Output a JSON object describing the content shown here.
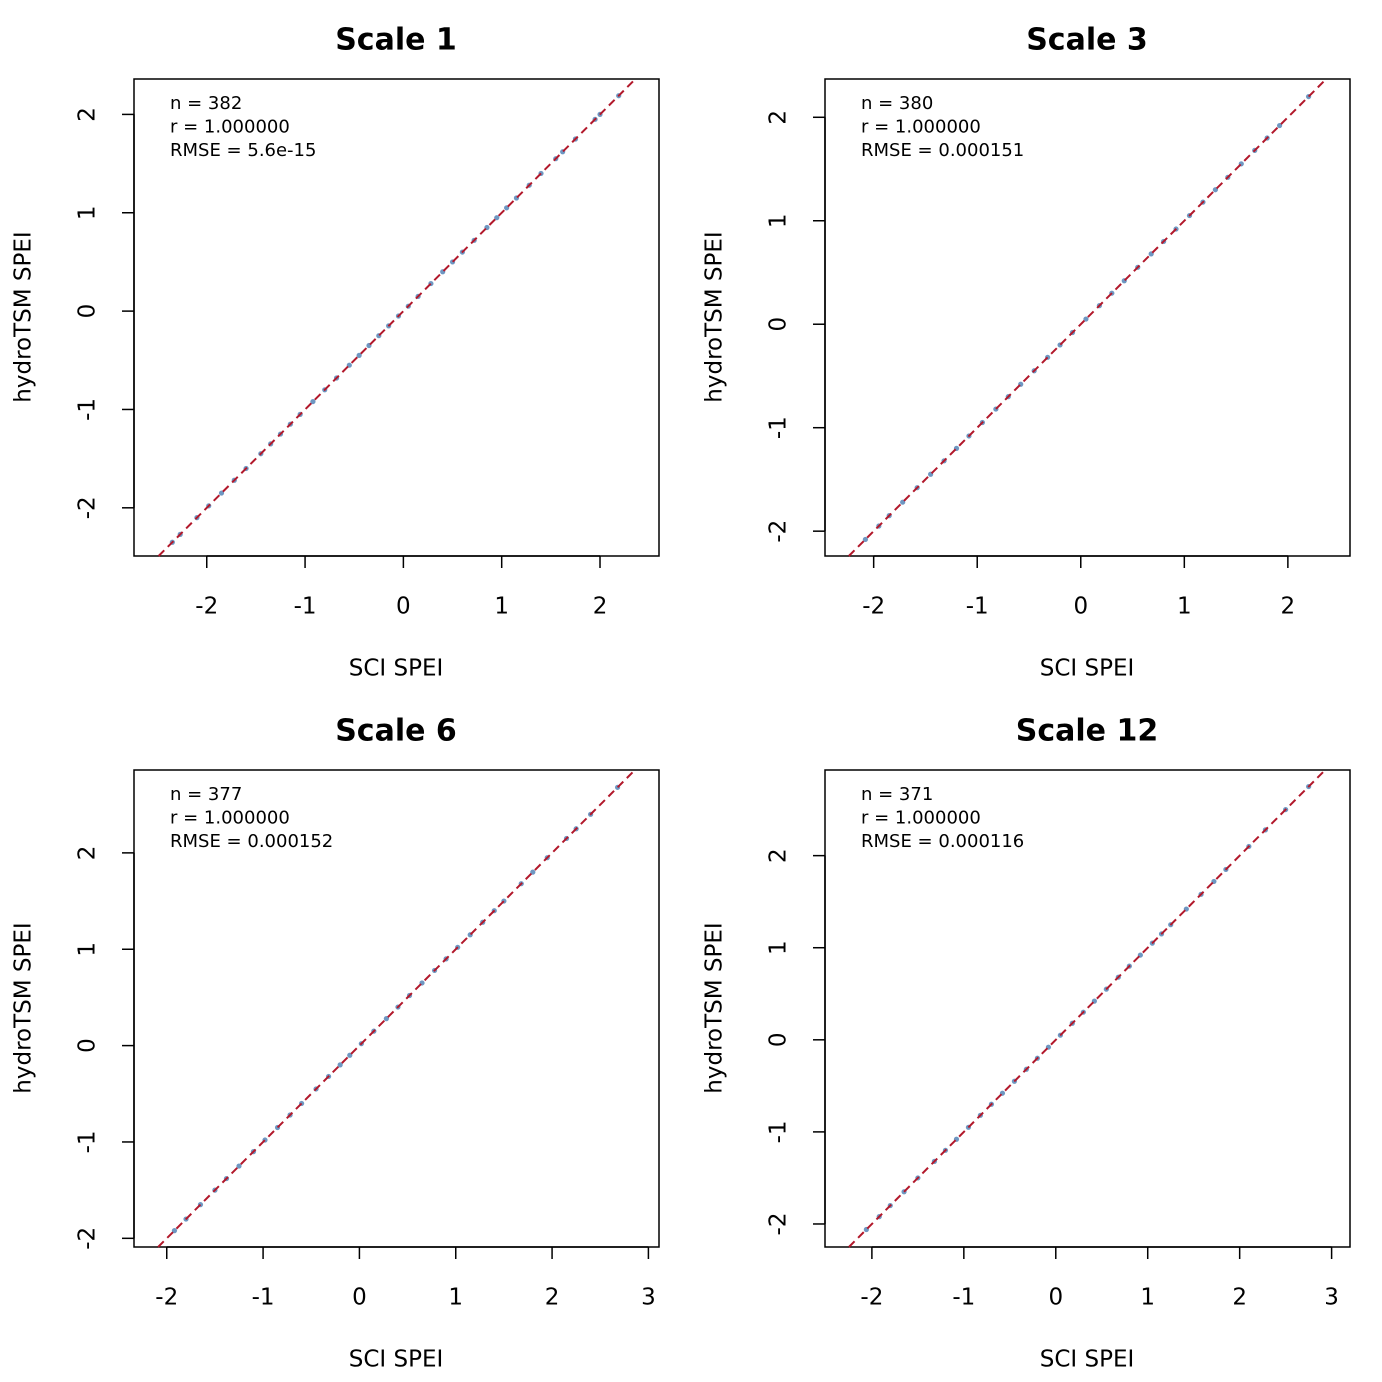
{
  "chart_data": [
    {
      "type": "scatter",
      "title": "Scale 1",
      "x_label": "SCI SPEI",
      "y_label": "hydroTSM SPEI",
      "annotations": [
        "n = 382",
        "r = 1.000000",
        "RMSE = 5.6e-15"
      ],
      "x": [
        -2.35,
        -2.27,
        -2.1,
        -1.98,
        -1.85,
        -1.72,
        -1.6,
        -1.45,
        -1.35,
        -1.25,
        -1.15,
        -1.05,
        -0.92,
        -0.8,
        -0.68,
        -0.55,
        -0.45,
        -0.35,
        -0.25,
        -0.15,
        -0.05,
        0.05,
        0.15,
        0.28,
        0.4,
        0.5,
        0.6,
        0.72,
        0.85,
        0.95,
        1.05,
        1.15,
        1.28,
        1.4,
        1.55,
        1.62,
        1.75,
        1.95,
        2.0,
        2.19
      ],
      "values": [
        -2.35,
        -2.27,
        -2.1,
        -1.98,
        -1.85,
        -1.72,
        -1.6,
        -1.45,
        -1.35,
        -1.25,
        -1.15,
        -1.05,
        -0.92,
        -0.8,
        -0.68,
        -0.55,
        -0.45,
        -0.35,
        -0.25,
        -0.15,
        -0.05,
        0.05,
        0.15,
        0.28,
        0.4,
        0.5,
        0.6,
        0.72,
        0.85,
        0.95,
        1.05,
        1.15,
        1.28,
        1.4,
        1.55,
        1.62,
        1.75,
        1.95,
        2.0,
        2.19
      ],
      "color": "#3d74ad",
      "identity_line": true,
      "line_color": "#b2182b",
      "xlim": [
        -2.74,
        2.6
      ],
      "ylim": [
        -2.49,
        2.36
      ],
      "xticks": [
        -2,
        -1,
        0,
        1,
        2
      ],
      "yticks": [
        -2,
        -1,
        0,
        1,
        2
      ]
    },
    {
      "type": "scatter",
      "title": "Scale 3",
      "x_label": "SCI SPEI",
      "y_label": "hydroTSM SPEI",
      "annotations": [
        "n = 380",
        "r = 1.000000",
        "RMSE = 0.000151"
      ],
      "x": [
        -2.08,
        -1.95,
        -1.85,
        -1.72,
        -1.58,
        -1.45,
        -1.32,
        -1.2,
        -1.08,
        -0.95,
        -0.82,
        -0.7,
        -0.58,
        -0.45,
        -0.32,
        -0.2,
        -0.08,
        0.05,
        0.18,
        0.3,
        0.42,
        0.55,
        0.68,
        0.8,
        0.92,
        1.05,
        1.18,
        1.3,
        1.42,
        1.55,
        1.68,
        1.8,
        1.92,
        2.2
      ],
      "values": [
        -2.08,
        -1.95,
        -1.85,
        -1.72,
        -1.58,
        -1.45,
        -1.32,
        -1.2,
        -1.08,
        -0.95,
        -0.82,
        -0.7,
        -0.58,
        -0.45,
        -0.32,
        -0.2,
        -0.08,
        0.05,
        0.18,
        0.3,
        0.42,
        0.55,
        0.68,
        0.8,
        0.92,
        1.05,
        1.18,
        1.3,
        1.42,
        1.55,
        1.68,
        1.8,
        1.92,
        2.2
      ],
      "color": "#3d74ad",
      "identity_line": true,
      "line_color": "#b2182b",
      "xlim": [
        -2.47,
        2.6
      ],
      "ylim": [
        -2.24,
        2.37
      ],
      "xticks": [
        -2,
        -1,
        0,
        1,
        2
      ],
      "yticks": [
        -2,
        -1,
        0,
        1,
        2
      ]
    },
    {
      "type": "scatter",
      "title": "Scale 6",
      "x_label": "SCI SPEI",
      "y_label": "hydroTSM SPEI",
      "annotations": [
        "n = 377",
        "r = 1.000000",
        "RMSE = 0.000152"
      ],
      "x": [
        -1.92,
        -1.8,
        -1.65,
        -1.5,
        -1.38,
        -1.25,
        -1.1,
        -0.98,
        -0.85,
        -0.72,
        -0.6,
        -0.45,
        -0.32,
        -0.2,
        -0.1,
        0.02,
        0.15,
        0.28,
        0.4,
        0.52,
        0.65,
        0.78,
        0.9,
        1.02,
        1.15,
        1.28,
        1.4,
        1.5,
        1.68,
        1.8,
        1.95,
        2.15,
        2.25,
        2.4,
        2.68
      ],
      "values": [
        -1.92,
        -1.8,
        -1.65,
        -1.5,
        -1.38,
        -1.25,
        -1.1,
        -0.98,
        -0.85,
        -0.72,
        -0.6,
        -0.45,
        -0.32,
        -0.2,
        -0.1,
        0.02,
        0.15,
        0.28,
        0.4,
        0.52,
        0.65,
        0.78,
        0.9,
        1.02,
        1.15,
        1.28,
        1.4,
        1.5,
        1.68,
        1.8,
        1.95,
        2.15,
        2.25,
        2.4,
        2.68
      ],
      "color": "#3d74ad",
      "identity_line": true,
      "line_color": "#b2182b",
      "xlim": [
        -2.34,
        3.11
      ],
      "ylim": [
        -2.09,
        2.86
      ],
      "xticks": [
        -2,
        -1,
        0,
        1,
        2,
        3
      ],
      "yticks": [
        -2,
        -1,
        0,
        1,
        2
      ]
    },
    {
      "type": "scatter",
      "title": "Scale 12",
      "x_label": "SCI SPEI",
      "y_label": "hydroTSM SPEI",
      "annotations": [
        "n = 371",
        "r = 1.000000",
        "RMSE = 0.000116"
      ],
      "x": [
        -2.06,
        -1.92,
        -1.8,
        -1.65,
        -1.5,
        -1.32,
        -1.2,
        -1.08,
        -0.95,
        -0.82,
        -0.7,
        -0.58,
        -0.45,
        -0.32,
        -0.2,
        -0.08,
        0.05,
        0.18,
        0.3,
        0.42,
        0.55,
        0.68,
        0.8,
        0.92,
        1.05,
        1.15,
        1.25,
        1.42,
        1.58,
        1.72,
        1.85,
        2.1,
        2.28,
        2.5,
        2.75
      ],
      "values": [
        -2.06,
        -1.92,
        -1.8,
        -1.65,
        -1.5,
        -1.32,
        -1.2,
        -1.08,
        -0.95,
        -0.82,
        -0.7,
        -0.58,
        -0.45,
        -0.32,
        -0.2,
        -0.08,
        0.05,
        0.18,
        0.3,
        0.42,
        0.55,
        0.68,
        0.8,
        0.92,
        1.05,
        1.15,
        1.25,
        1.42,
        1.58,
        1.72,
        1.85,
        2.1,
        2.28,
        2.5,
        2.75
      ],
      "color": "#3d74ad",
      "identity_line": true,
      "line_color": "#b2182b",
      "xlim": [
        -2.51,
        3.2
      ],
      "ylim": [
        -2.25,
        2.93
      ],
      "xticks": [
        -2,
        -1,
        0,
        1,
        2,
        3
      ],
      "yticks": [
        -2,
        -1,
        0,
        1,
        2
      ]
    }
  ]
}
